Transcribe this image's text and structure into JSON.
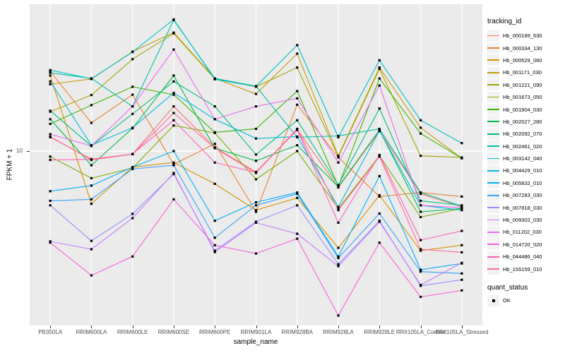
{
  "figure": {
    "y_axis": {
      "title": "FPKM + 1",
      "tick_labels": [
        "10"
      ]
    },
    "x_axis": {
      "title": "sample_name"
    },
    "legend": {
      "tracking_title": "tracking_id",
      "quant_title": "quant_status",
      "quant_item_label": "OK"
    }
  },
  "colors": {
    "panel_bg": "#EBEBEB",
    "gridline": "#FFFFFF",
    "point": "#000000",
    "axis_text": "#4D4D4D",
    "legend_key_bg": "#F2F2F2"
  },
  "chart_data": {
    "type": "line",
    "title": "",
    "xlabel": "sample_name",
    "ylabel": "FPKM + 1",
    "y_scale": "log10",
    "y_tick_values": [
      10
    ],
    "ylim": [
      1.1,
      70
    ],
    "grid": "major-on-grey-panel",
    "legend_position": "right",
    "legend_title": "tracking_id",
    "quant_status_legend": {
      "title": "quant_status",
      "items": [
        "OK"
      ]
    },
    "point_marker": "filled-black-square",
    "x_categories": [
      "PB350LA",
      "RRIM600LA",
      "RRIM600LE",
      "RRIM600SE",
      "RRIM600PE",
      "RRIM901LA",
      "RRIM928BA",
      "RRIM928LA",
      "RRIM928LE",
      "RRII105LA_Control",
      "RRII105LA_Stressed"
    ],
    "series": [
      {
        "name": "Hb_000189_630",
        "color": "#F8766D",
        "values": [
          12.0,
          9.0,
          9.6,
          18.0,
          10.5,
          7.6,
          13.3,
          6.2,
          13.0,
          5.7,
          4.8
        ]
      },
      {
        "name": "Hb_000334_130",
        "color": "#EA8331",
        "values": [
          28.5,
          14.5,
          21.0,
          8.4,
          11.0,
          4.5,
          18.4,
          9.2,
          5.5,
          5.8,
          5.5
        ]
      },
      {
        "name": "Hb_000529_060",
        "color": "#D89000",
        "values": [
          27.0,
          5.0,
          8.1,
          8.6,
          6.5,
          4.6,
          5.4,
          2.8,
          5.6,
          2.7,
          2.9
        ]
      },
      {
        "name": "Hb_001171_030",
        "color": "#C09B00",
        "values": [
          24.1,
          25.8,
          37.0,
          47.5,
          26.0,
          21.2,
          36.0,
          9.4,
          30.0,
          13.6,
          9.1
        ]
      },
      {
        "name": "Hb_001221_090",
        "color": "#A3A500",
        "values": [
          16.8,
          20.9,
          33.5,
          47.0,
          25.8,
          23.3,
          30.0,
          9.3,
          29.5,
          9.4,
          9.2
        ]
      },
      {
        "name": "Hb_001673_050",
        "color": "#7CAE00",
        "values": [
          9.3,
          7.0,
          8.0,
          14.0,
          12.7,
          6.9,
          10.0,
          4.7,
          9.4,
          4.2,
          4.7
        ]
      },
      {
        "name": "Hb_001904_030",
        "color": "#39B600",
        "values": [
          14.3,
          18.3,
          23.3,
          21.0,
          12.8,
          13.4,
          22.0,
          6.3,
          26.0,
          12.6,
          9.1
        ]
      },
      {
        "name": "Hb_002027_280",
        "color": "#00BB4E",
        "values": [
          15.2,
          8.3,
          13.5,
          27.0,
          10.4,
          8.8,
          10.8,
          6.25,
          13.2,
          4.5,
          4.7
        ]
      },
      {
        "name": "Hb_002092_070",
        "color": "#00BF7D",
        "values": [
          17.0,
          10.7,
          16.3,
          25.0,
          18.0,
          9.55,
          15.0,
          6.4,
          17.5,
          5.2,
          4.9
        ]
      },
      {
        "name": "Hb_002461_020",
        "color": "#00C1A3",
        "values": [
          28.0,
          26.0,
          18.0,
          56.0,
          26.0,
          23.5,
          12.0,
          12.2,
          13.4,
          5.8,
          4.85
        ]
      },
      {
        "name": "Hb_003142_040",
        "color": "#00BFC4",
        "values": [
          29.0,
          25.9,
          36.8,
          56.5,
          25.7,
          23.4,
          40.3,
          12.0,
          33.0,
          15.0,
          11.1
        ]
      },
      {
        "name": "Hb_004429_010",
        "color": "#00BAE0",
        "values": [
          25.0,
          10.8,
          13.6,
          21.5,
          15.2,
          11.8,
          12.1,
          4.8,
          13.1,
          4.9,
          4.6
        ]
      },
      {
        "name": "Hb_005832_010",
        "color": "#00B0F6",
        "values": [
          5.9,
          6.35,
          8.1,
          10.0,
          4.0,
          5.1,
          5.8,
          2.5,
          7.2,
          2.1,
          2.28
        ]
      },
      {
        "name": "Hb_007283_030",
        "color": "#35A2FF",
        "values": [
          5.2,
          5.3,
          7.9,
          8.3,
          3.2,
          4.9,
          5.7,
          2.45,
          4.4,
          2.05,
          2.0
        ]
      },
      {
        "name": "Hb_007818_030",
        "color": "#9590FF",
        "values": [
          4.9,
          3.07,
          4.38,
          7.4,
          2.7,
          3.95,
          4.9,
          2.26,
          4.0,
          1.7,
          1.84
        ]
      },
      {
        "name": "Hb_009302_030",
        "color": "#C77CFF",
        "values": [
          3.05,
          2.75,
          4.14,
          7.5,
          2.65,
          3.9,
          3.37,
          2.2,
          3.95,
          1.72,
          2.3
        ]
      },
      {
        "name": "Hb_011202_030",
        "color": "#E76BF3",
        "values": [
          12.5,
          10.7,
          18.0,
          38.0,
          15.2,
          18.0,
          20.0,
          8.6,
          23.7,
          4.9,
          4.75
        ]
      },
      {
        "name": "Hb_014720_020",
        "color": "#FA62DB",
        "values": [
          3.0,
          1.95,
          2.5,
          5.3,
          2.9,
          2.6,
          3.16,
          1.15,
          3.0,
          1.47,
          1.6
        ]
      },
      {
        "name": "Hb_044486_040",
        "color": "#FF62BC",
        "values": [
          8.9,
          8.95,
          9.63,
          15.0,
          8.6,
          7.57,
          13.2,
          3.9,
          9.5,
          3.1,
          3.5
        ]
      },
      {
        "name": "Hb_155159_010",
        "color": "#FF6A98",
        "values": [
          12.1,
          8.9,
          9.6,
          16.5,
          10.4,
          7.5,
          13.4,
          4.6,
          9.3,
          2.75,
          2.64
        ]
      }
    ]
  }
}
